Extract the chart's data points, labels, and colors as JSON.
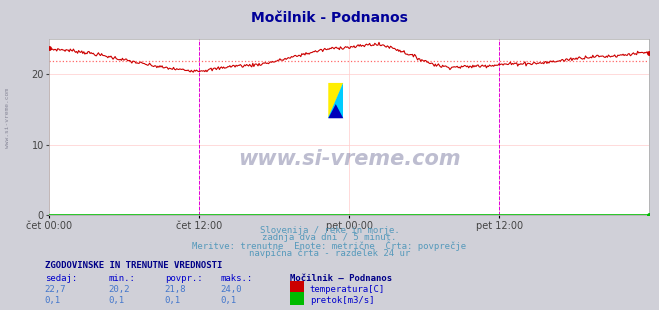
{
  "title": "Močilnik - Podnanos",
  "bg_color": "#d0d0d8",
  "plot_bg_color": "#ffffff",
  "grid_color": "#ffcccc",
  "ylim": [
    0,
    25
  ],
  "yticks": [
    0,
    10,
    20
  ],
  "xlabel_ticks": [
    "čet 00:00",
    "čet 12:00",
    "pet 00:00",
    "pet 12:00"
  ],
  "temp_avg": 21.8,
  "line_color_temp": "#cc0000",
  "line_color_flow": "#00bb00",
  "avg_line_color": "#ff6666",
  "vline_color": "#dd00dd",
  "title_color": "#000099",
  "subtitle_color": "#5599bb",
  "label_color": "#0000cc",
  "value_color": "#4477cc",
  "legend_header_color": "#000088",
  "subtitle_lines": [
    "Slovenija / reke in morje.",
    "zadnja dva dni / 5 minut.",
    "Meritve: trenutne  Enote: metrične  Črta: povprečje",
    "navpična črta - razdelek 24 ur"
  ],
  "stats_header": "ZGODOVINSKE IN TRENUTNE VREDNOSTI",
  "col_headers": [
    "sedaj:",
    "min.:",
    "povpr.:",
    "maks.:",
    "Močilnik – Podnanos"
  ],
  "row1_vals": [
    "22,7",
    "20,2",
    "21,8",
    "24,0"
  ],
  "row2_vals": [
    "0,1",
    "0,1",
    "0,1",
    "0,1"
  ],
  "legend_temp": "temperatura[C]",
  "legend_flow": "pretok[m3/s]"
}
